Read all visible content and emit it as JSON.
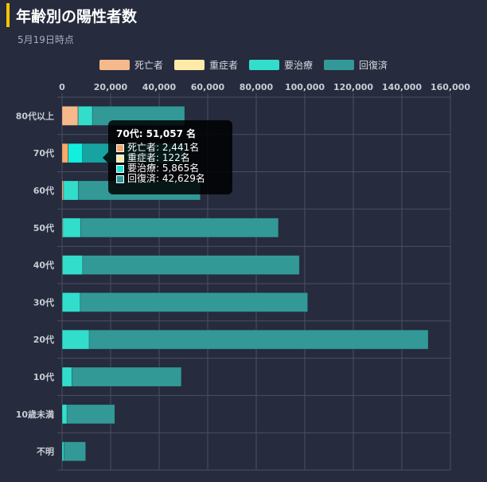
{
  "header": {
    "title": "年齢別の陽性者数",
    "subtitle": "5月19日時点"
  },
  "colors": {
    "background": "#262b3d",
    "title_accent": "#f5c400",
    "grid": "#4a4f63",
    "axis_text": "#c9ccd6"
  },
  "tooltip": {
    "title": "70代: 51,057 名",
    "rows": [
      {
        "label": "死亡者: 2,441名",
        "color": "#f7a86a"
      },
      {
        "label": "重症者: 122名",
        "color": "#ffe9a8"
      },
      {
        "label": "要治療: 5,865名",
        "color": "#22e5d5"
      },
      {
        "label": "回復済: 42,629名",
        "color": "#319a96"
      }
    ]
  },
  "chart_data": {
    "type": "bar",
    "orientation": "horizontal",
    "stacked": true,
    "categories": [
      "80代以上",
      "70代",
      "60代",
      "50代",
      "40代",
      "30代",
      "20代",
      "10代",
      "10歳未満",
      "不明"
    ],
    "series": [
      {
        "name": "死亡者",
        "color": "#f5b98c",
        "values": [
          6500,
          2441,
          500,
          200,
          100,
          50,
          30,
          10,
          5,
          10
        ]
      },
      {
        "name": "重症者",
        "color": "#ffeaa7",
        "values": [
          200,
          122,
          150,
          120,
          80,
          40,
          20,
          5,
          5,
          5
        ]
      },
      {
        "name": "要治療",
        "color": "#33ddcc",
        "values": [
          5800,
          5865,
          6000,
          7300,
          8300,
          7400,
          11100,
          4000,
          2000,
          700
        ]
      },
      {
        "name": "回復済",
        "color": "#329997",
        "values": [
          38000,
          42629,
          50300,
          81500,
          89300,
          93700,
          139700,
          45100,
          19700,
          9000
        ]
      }
    ],
    "highlight_index": 1,
    "xlim": [
      0,
      160000
    ],
    "xticks": [
      0,
      20000,
      40000,
      60000,
      80000,
      100000,
      120000,
      140000,
      160000
    ],
    "xtick_labels": [
      "0",
      "20,000",
      "40,000",
      "60,000",
      "80,000",
      "100,000",
      "120,000",
      "140,000",
      "160,000"
    ],
    "x_axis_position": "top",
    "grid": true,
    "legend_position": "top-center"
  }
}
